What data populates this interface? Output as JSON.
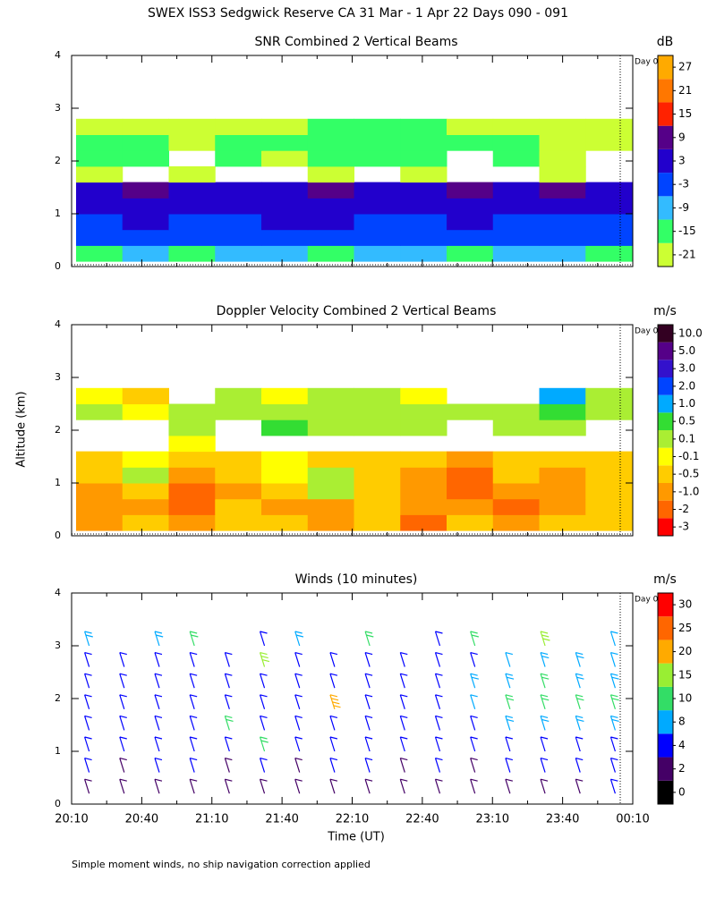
{
  "title": "SWEX ISS3 Sedgwick Reserve CA  31 Mar -  1 Apr 22 Days 090 - 091",
  "y_label": "Altitude (km)",
  "x_label": "Time (UT)",
  "note": "Simple moment winds, no ship navigation correction applied",
  "time_ticks": [
    "20:10",
    "20:40",
    "21:10",
    "21:40",
    "22:10",
    "22:40",
    "23:10",
    "23:40",
    "00:10"
  ],
  "chart_data": [
    {
      "type": "heatmap",
      "title": "SNR Combined 2 Vertical Beams",
      "unit": "dB",
      "marker_label": "Day 0",
      "ylim": [
        0,
        4
      ],
      "yticks": [
        0,
        1,
        2,
        3,
        4
      ],
      "y": [
        0.25,
        0.55,
        0.85,
        1.15,
        1.45,
        1.75,
        2.05,
        2.35,
        2.65
      ],
      "values": [
        [
          -12,
          -10,
          -12,
          -9,
          -11,
          -12,
          -10,
          -9,
          -12,
          -10,
          -11,
          -12
        ],
        [
          -4,
          -3,
          -5,
          -4,
          -3,
          -2,
          -4,
          -3,
          -4,
          -5,
          -3,
          -4
        ],
        [
          0,
          1,
          -1,
          0,
          2,
          1,
          0,
          -1,
          1,
          0,
          -1,
          0
        ],
        [
          3,
          2,
          4,
          3,
          2,
          3,
          4,
          2,
          3,
          5,
          2,
          3
        ],
        [
          6,
          7,
          5,
          6,
          6,
          7,
          6,
          5,
          7,
          6,
          7,
          6
        ],
        [
          -18,
          null,
          -19,
          null,
          null,
          -18,
          null,
          -19,
          null,
          null,
          -18,
          null
        ],
        [
          -16,
          -17,
          null,
          -16,
          -18,
          -14,
          -14,
          -15,
          null,
          -17,
          -18,
          null
        ],
        [
          -16,
          -17,
          -18,
          -17,
          -15,
          -13,
          -12,
          -13,
          -15,
          -16,
          -18,
          -19
        ],
        [
          -19,
          -20,
          -19,
          -20,
          -19,
          -15,
          -14,
          -15,
          -18,
          -19,
          -20,
          -19
        ]
      ],
      "levels": [
        -21,
        -15,
        -9,
        -3,
        3,
        9,
        15,
        21,
        27
      ],
      "colors": [
        "#ccff33",
        "#33ff66",
        "#33bbff",
        "#0044ff",
        "#2200cc",
        "#550088",
        "#ff2200",
        "#ff7700",
        "#ffaa00"
      ]
    },
    {
      "type": "heatmap",
      "title": "Doppler Velocity Combined 2 Vertical Beams",
      "unit": "m/s",
      "marker_label": "Day 0",
      "ylim": [
        0,
        4
      ],
      "yticks": [
        0,
        1,
        2,
        3,
        4
      ],
      "y": [
        0.25,
        0.55,
        0.85,
        1.15,
        1.45,
        1.75,
        2.05,
        2.35,
        2.65
      ],
      "values": [
        [
          -1.0,
          -0.5,
          -1.0,
          -0.5,
          -0.5,
          -1.0,
          -0.5,
          -2.0,
          -0.5,
          -1.0,
          -0.5,
          -0.5
        ],
        [
          -1.0,
          -1.0,
          -2.0,
          -0.5,
          -1.0,
          -1.0,
          -0.5,
          -1.0,
          -1.0,
          -2.0,
          -1.0,
          -0.5
        ],
        [
          -1.0,
          -0.5,
          -2.0,
          -1.0,
          -0.5,
          0.1,
          -0.5,
          -1.0,
          -2.0,
          -1.0,
          -1.0,
          -0.5
        ],
        [
          -0.5,
          0.1,
          -1.0,
          -0.5,
          -0.1,
          0.1,
          -0.5,
          -1.0,
          -2.0,
          -0.5,
          -1.0,
          -0.5
        ],
        [
          -0.5,
          -0.1,
          -0.5,
          -0.5,
          -0.1,
          -0.5,
          -0.5,
          -0.5,
          -1.0,
          -0.5,
          -0.5,
          -0.5
        ],
        [
          null,
          null,
          -0.1,
          null,
          null,
          null,
          null,
          null,
          null,
          null,
          null,
          null
        ],
        [
          null,
          null,
          0.1,
          null,
          0.5,
          0.1,
          0.1,
          0.1,
          null,
          0.1,
          0.1,
          null
        ],
        [
          0.1,
          -0.1,
          0.1,
          0.1,
          0.1,
          0.1,
          0.1,
          0.1,
          0.1,
          0.1,
          0.5,
          0.1
        ],
        [
          -0.1,
          -0.5,
          null,
          0.1,
          -0.1,
          0.1,
          0.1,
          -0.1,
          null,
          null,
          1.0,
          0.1
        ]
      ],
      "levels": [
        -3,
        -2,
        {
          "value": -1,
          "label": "-1.0"
        },
        -0.5,
        -0.1,
        0.1,
        0.5,
        {
          "value": 1,
          "label": "1.0"
        },
        {
          "value": 2,
          "label": "2.0"
        },
        {
          "value": 3,
          "label": "3.0"
        },
        {
          "value": 5,
          "label": "5.0"
        },
        {
          "value": 10,
          "label": "10.0"
        }
      ],
      "colors": [
        "#ff0000",
        "#ff6600",
        "#ff9900",
        "#ffcc00",
        "#ffff00",
        "#aaee33",
        "#33dd33",
        "#00aaff",
        "#0044ff",
        "#3311cc",
        "#550088",
        "#330022"
      ]
    },
    {
      "type": "barbs",
      "title": "Winds (10 minutes)",
      "unit": "m/s",
      "marker_label": "Day 0",
      "ylim": [
        0,
        4
      ],
      "yticks": [
        0,
        1,
        2,
        3,
        4
      ],
      "y": [
        0.2,
        0.6,
        1.0,
        1.4,
        1.8,
        2.2,
        2.6,
        3.0
      ],
      "values": [
        [
          3,
          2,
          3,
          2,
          3,
          2,
          3,
          3,
          2,
          3,
          2,
          3,
          3,
          2,
          3,
          4
        ],
        [
          4,
          3,
          4,
          4,
          3,
          4,
          3,
          4,
          4,
          3,
          4,
          3,
          4,
          5,
          5,
          4
        ],
        [
          4,
          5,
          4,
          4,
          5,
          10,
          4,
          4,
          5,
          4,
          4,
          5,
          6,
          6,
          5,
          6
        ],
        [
          5,
          4,
          5,
          4,
          12,
          5,
          4,
          5,
          4,
          5,
          5,
          6,
          9,
          8,
          9,
          8
        ],
        [
          6,
          5,
          6,
          5,
          5,
          6,
          5,
          20,
          6,
          5,
          6,
          7,
          10,
          12,
          11,
          10
        ],
        [
          5,
          4,
          5,
          5,
          4,
          5,
          6,
          5,
          4,
          5,
          6,
          8,
          9,
          10,
          9,
          8
        ],
        [
          4,
          5,
          5,
          4,
          5,
          15,
          5,
          4,
          6,
          5,
          5,
          6,
          7,
          8,
          9,
          7
        ],
        [
          8,
          null,
          9,
          10,
          null,
          6,
          9,
          null,
          10,
          null,
          6,
          12,
          null,
          15,
          null,
          7
        ]
      ],
      "levels": [
        0,
        2,
        4,
        8,
        10,
        15,
        20,
        25,
        30
      ],
      "colors": [
        "#000000",
        "#440066",
        "#0000ff",
        "#00aaff",
        "#33dd66",
        "#99ee33",
        "#ffaa00",
        "#ff6600",
        "#ff0000"
      ]
    }
  ]
}
